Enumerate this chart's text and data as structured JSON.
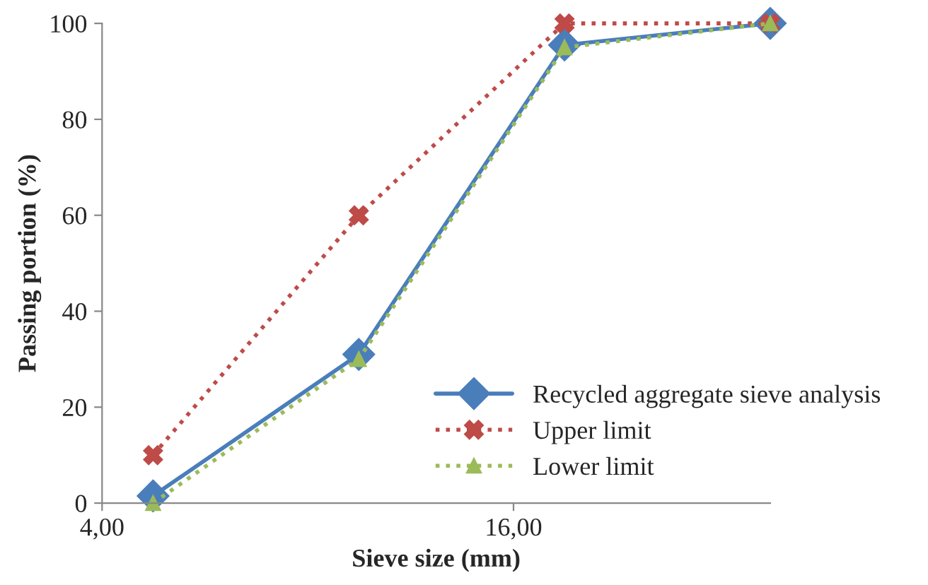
{
  "chart_data": {
    "type": "line",
    "xlabel": "Sieve size (mm)",
    "ylabel": "Passing portion (%)",
    "x": [
      4.75,
      9.5,
      19,
      38
    ],
    "log": "x",
    "xlim": [
      4,
      38
    ],
    "xticks": [
      {
        "value": 4,
        "label": "4,00"
      },
      {
        "value": 16,
        "label": "16,00"
      }
    ],
    "ylim": [
      0,
      100
    ],
    "yticks": [
      0,
      20,
      40,
      60,
      80,
      100
    ],
    "grid": false,
    "legend": "bottom right",
    "series": [
      {
        "name": "Recycled aggregate sieve analysis",
        "color": "#4a7ebb",
        "values": [
          1.5,
          31,
          95.5,
          100
        ],
        "marker": "diamond",
        "line_style": "solid"
      },
      {
        "name": "Upper limit",
        "color": "#be4b48",
        "values": [
          10,
          60,
          100,
          100
        ],
        "marker": "cross",
        "line_style": "dotted"
      },
      {
        "name": "Lower limit",
        "color": "#9bbb59",
        "values": [
          0,
          30,
          95,
          100
        ],
        "marker": "triangle",
        "line_style": "dotted"
      }
    ]
  }
}
